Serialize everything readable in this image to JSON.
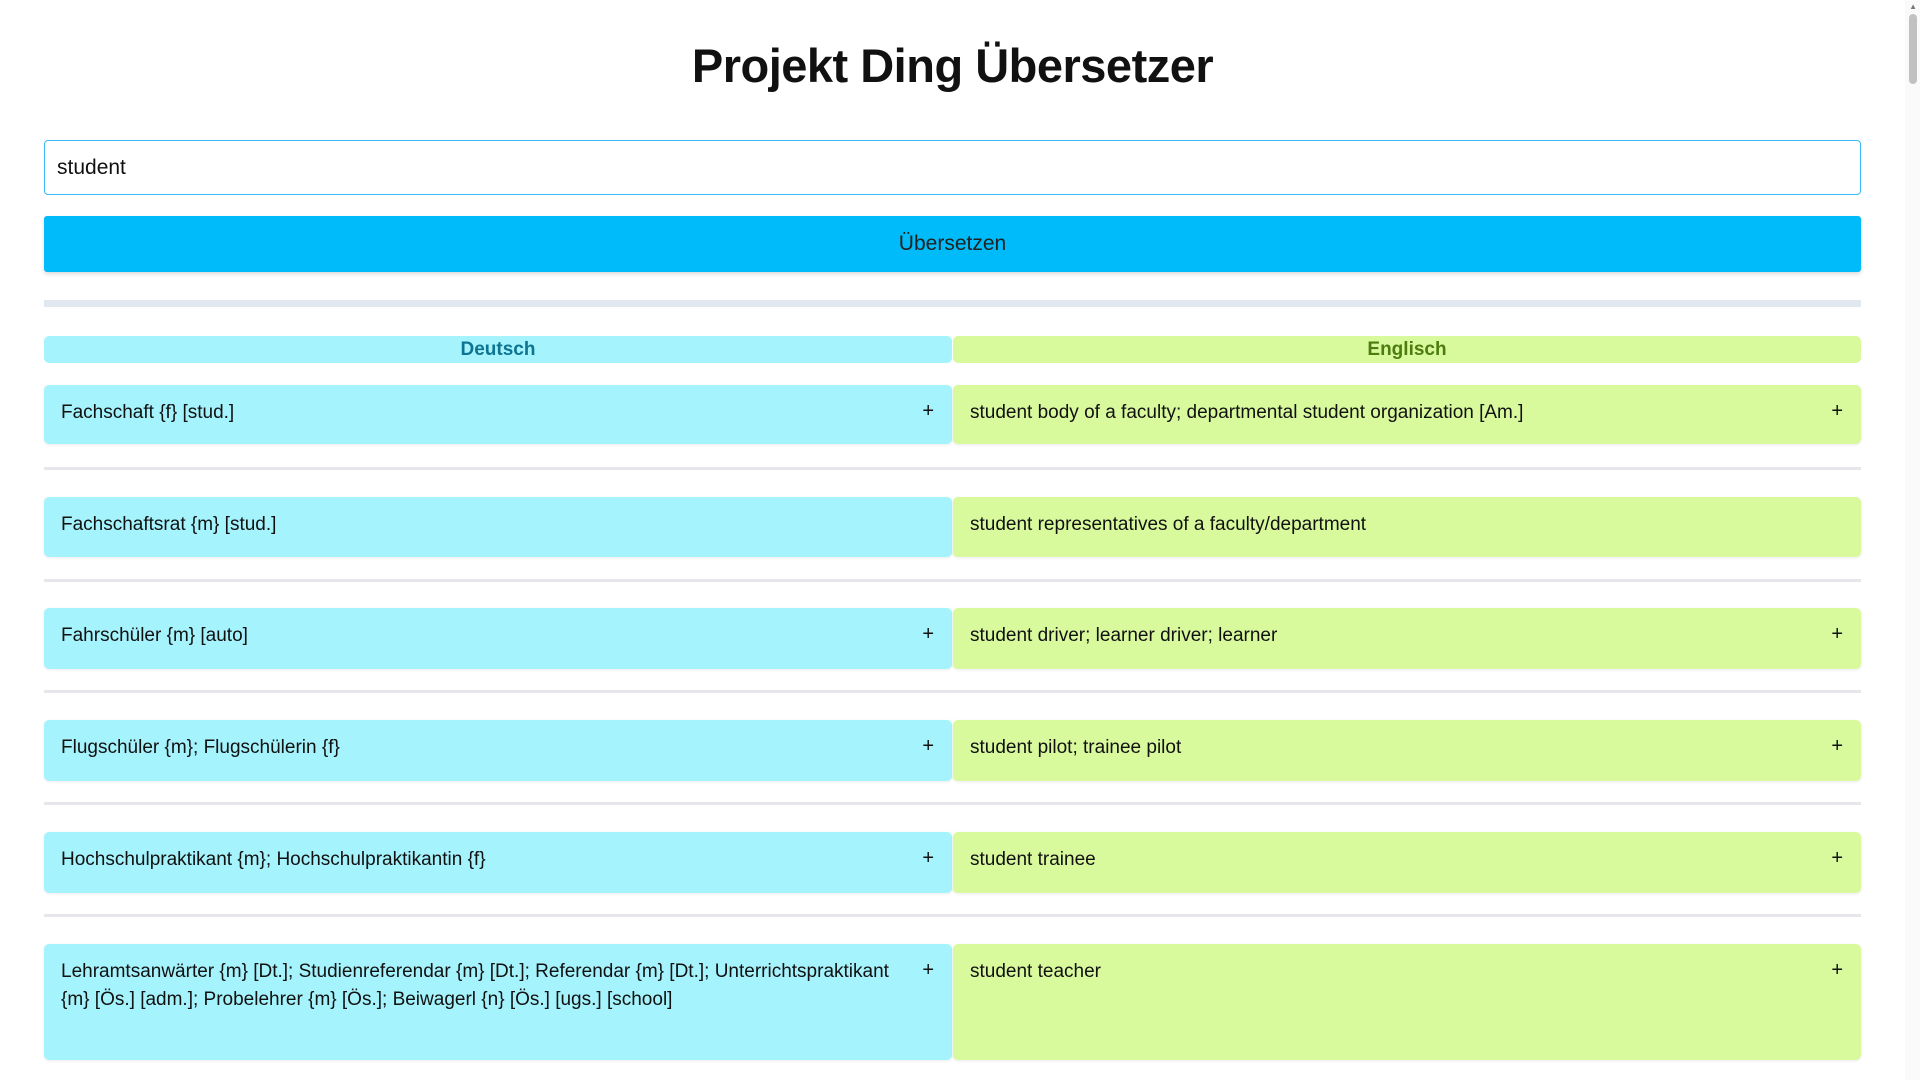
{
  "title": "Projekt Ding Übersetzer",
  "search": {
    "value": "student"
  },
  "translate_button": "Übersetzen",
  "headers": {
    "de": "Deutsch",
    "en": "Englisch"
  },
  "colors": {
    "button": "#00bbf9",
    "de_bg": "#a5f3fc",
    "en_bg": "#d9f99d",
    "de_header": "#0e7490",
    "en_header": "#4d7c0f"
  },
  "rows": [
    {
      "de": "Fachschaft {f} [stud.]",
      "en": "student body of a faculty; departmental student organization [Am.]",
      "de_plus": "+",
      "en_plus": "+"
    },
    {
      "de": "Fachschaftsrat {m} [stud.]",
      "en": "student representatives of a faculty/department",
      "de_plus": "",
      "en_plus": ""
    },
    {
      "de": "Fahrschüler {m} [auto]",
      "en": "student driver; learner driver; learner",
      "de_plus": "+",
      "en_plus": "+"
    },
    {
      "de": "Flugschüler {m}; Flugschülerin {f}",
      "en": "student pilot; trainee pilot",
      "de_plus": "+",
      "en_plus": "+"
    },
    {
      "de": "Hochschulpraktikant {m}; Hochschulpraktikantin {f}",
      "en": "student trainee",
      "de_plus": "+",
      "en_plus": "+"
    },
    {
      "de": "Lehramtsanwärter {m} [Dt.]; Studienreferendar {m} [Dt.]; Referendar {m} [Dt.]; Unterrichtspraktikant {m} [Ös.] [adm.]; Probelehrer {m} [Ös.]; Beiwagerl {n} [Ös.] [ugs.] [school]",
      "en": "student teacher",
      "de_plus": "+",
      "en_plus": "+"
    }
  ]
}
